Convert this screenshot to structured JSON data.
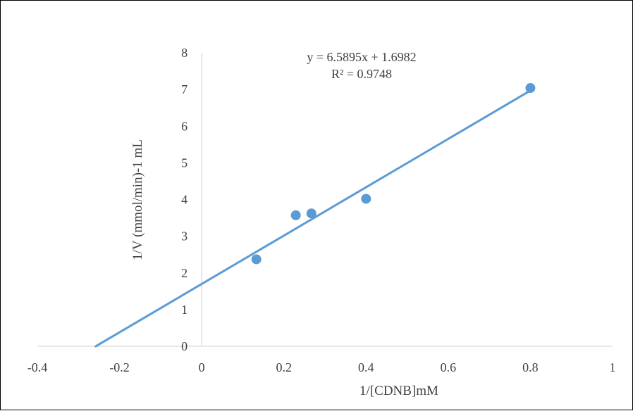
{
  "chart_data": {
    "type": "scatter",
    "title": "",
    "xlabel": "1/[CDNB]mM",
    "ylabel": "1/V (mmol/min)-1 mL",
    "xlim": [
      -0.4,
      1
    ],
    "ylim": [
      0,
      8
    ],
    "x_ticks": [
      -0.4,
      -0.2,
      0,
      0.2,
      0.4,
      0.6,
      0.8,
      1
    ],
    "x_tick_labels": [
      "-0.4",
      "-0.2",
      "0",
      "0.2",
      "0.4",
      "0.6",
      "0.8",
      "1"
    ],
    "y_ticks": [
      0,
      1,
      2,
      3,
      4,
      5,
      6,
      7,
      8
    ],
    "y_tick_labels": [
      "0",
      "1",
      "2",
      "3",
      "4",
      "5",
      "6",
      "7",
      "8"
    ],
    "grid": false,
    "series": [
      {
        "points": [
          {
            "x": 0.133,
            "y": 2.37
          },
          {
            "x": 0.229,
            "y": 3.57
          },
          {
            "x": 0.267,
            "y": 3.62
          },
          {
            "x": 0.4,
            "y": 4.02
          },
          {
            "x": 0.8,
            "y": 7.04
          }
        ],
        "color": "#5B9BD5"
      }
    ],
    "trendline": {
      "type": "linear",
      "slope": 6.5895,
      "intercept": 1.6982,
      "x_range": [
        -0.258,
        0.8
      ],
      "color": "#5B9BD5",
      "equation_label": "y = 6.5895x + 1.6982",
      "r2_label": "R² = 0.9748"
    }
  }
}
